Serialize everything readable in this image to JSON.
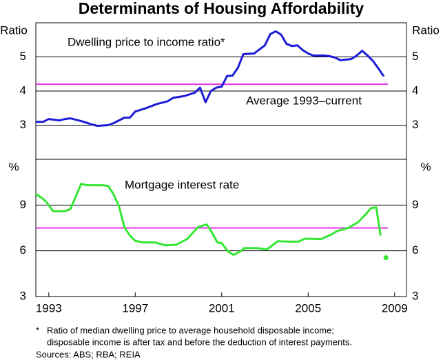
{
  "title": "Determinants of Housing Affordability",
  "chart_data": [
    {
      "type": "line",
      "y_label": "Ratio",
      "xlim": [
        1992.4,
        2009.55
      ],
      "ylim": [
        2,
        6
      ],
      "yticks": [
        3,
        4,
        5
      ],
      "grid": true,
      "series": [
        {
          "name": "Dwelling price to income ratio*",
          "color": "#1c1cd6",
          "x": [
            1992.4,
            1992.75,
            1993.0,
            1993.5,
            1993.75,
            1994.0,
            1994.5,
            1995.0,
            1995.25,
            1995.75,
            1996.0,
            1996.5,
            1996.75,
            1997.0,
            1997.5,
            1998.0,
            1998.5,
            1998.75,
            1999.25,
            1999.75,
            2000.0,
            2000.25,
            2000.5,
            2000.75,
            2001.0,
            2001.25,
            2001.5,
            2001.75,
            2002.0,
            2002.5,
            2002.75,
            2003.0,
            2003.25,
            2003.5,
            2003.75,
            2004.0,
            2004.25,
            2004.5,
            2004.75,
            2005.0,
            2005.25,
            2005.75,
            2006.0,
            2006.25,
            2006.5,
            2006.75,
            2007.0,
            2007.25,
            2007.5,
            2007.75,
            2008.0,
            2008.25,
            2008.5
          ],
          "values": [
            3.1,
            3.1,
            3.18,
            3.14,
            3.18,
            3.2,
            3.12,
            3.02,
            2.98,
            3.0,
            3.06,
            3.22,
            3.22,
            3.4,
            3.5,
            3.62,
            3.7,
            3.8,
            3.85,
            3.95,
            4.1,
            3.67,
            4.0,
            4.1,
            4.13,
            4.44,
            4.45,
            4.68,
            5.08,
            5.1,
            5.22,
            5.34,
            5.67,
            5.75,
            5.65,
            5.38,
            5.32,
            5.34,
            5.2,
            5.1,
            5.04,
            5.04,
            5.02,
            4.98,
            4.9,
            4.92,
            4.94,
            5.04,
            5.18,
            5.04,
            4.88,
            4.66,
            4.43
          ]
        }
      ],
      "reference": {
        "label": "Average 1993–current",
        "value": 4.2,
        "color": "#e633e6"
      }
    },
    {
      "type": "line",
      "y_label": "%",
      "xlim": [
        1992.4,
        2009.55
      ],
      "ylim": [
        3,
        12
      ],
      "yticks": [
        3,
        6,
        9
      ],
      "grid": true,
      "xticks": [
        1993,
        1997,
        2001,
        2005,
        2009
      ],
      "series": [
        {
          "name": "Mortgage interest rate",
          "color": "#33e633",
          "x": [
            1992.4,
            1992.7,
            1992.9,
            1993.2,
            1993.75,
            1994.0,
            1994.5,
            1994.75,
            1995.5,
            1995.75,
            1996.0,
            1996.25,
            1996.5,
            1996.75,
            1997.0,
            1997.4,
            1997.9,
            1998.4,
            1998.9,
            1999.4,
            1999.9,
            2000.3,
            2000.45,
            2000.8,
            2001.0,
            2001.3,
            2001.55,
            2001.85,
            2002.05,
            2002.6,
            2003.1,
            2003.6,
            2004.1,
            2004.55,
            2004.85,
            2005.6,
            2006.1,
            2006.35,
            2006.85,
            2007.3,
            2007.7,
            2007.9,
            2008.15,
            2008.35
          ],
          "values": [
            9.73,
            9.45,
            9.18,
            8.6,
            8.6,
            8.73,
            10.4,
            10.3,
            10.3,
            10.25,
            9.7,
            8.9,
            7.55,
            7.0,
            6.65,
            6.55,
            6.55,
            6.36,
            6.4,
            6.77,
            7.55,
            7.73,
            7.45,
            6.55,
            6.5,
            5.95,
            5.73,
            5.95,
            6.18,
            6.18,
            6.1,
            6.63,
            6.6,
            6.6,
            6.8,
            6.77,
            7.09,
            7.3,
            7.5,
            7.86,
            8.45,
            8.8,
            8.85,
            7.0
          ]
        }
      ],
      "marker": {
        "x": 2008.6,
        "value": 5.55,
        "color": "#33e633"
      },
      "reference": {
        "value": 7.5,
        "color": "#e633e6"
      }
    }
  ],
  "footnote": [
    "*",
    "Ratio of median dwelling price to average household disposable income;",
    "disposable income is after tax and before the deduction of interest payments."
  ],
  "sources": "Sources: ABS; RBA; REIA"
}
